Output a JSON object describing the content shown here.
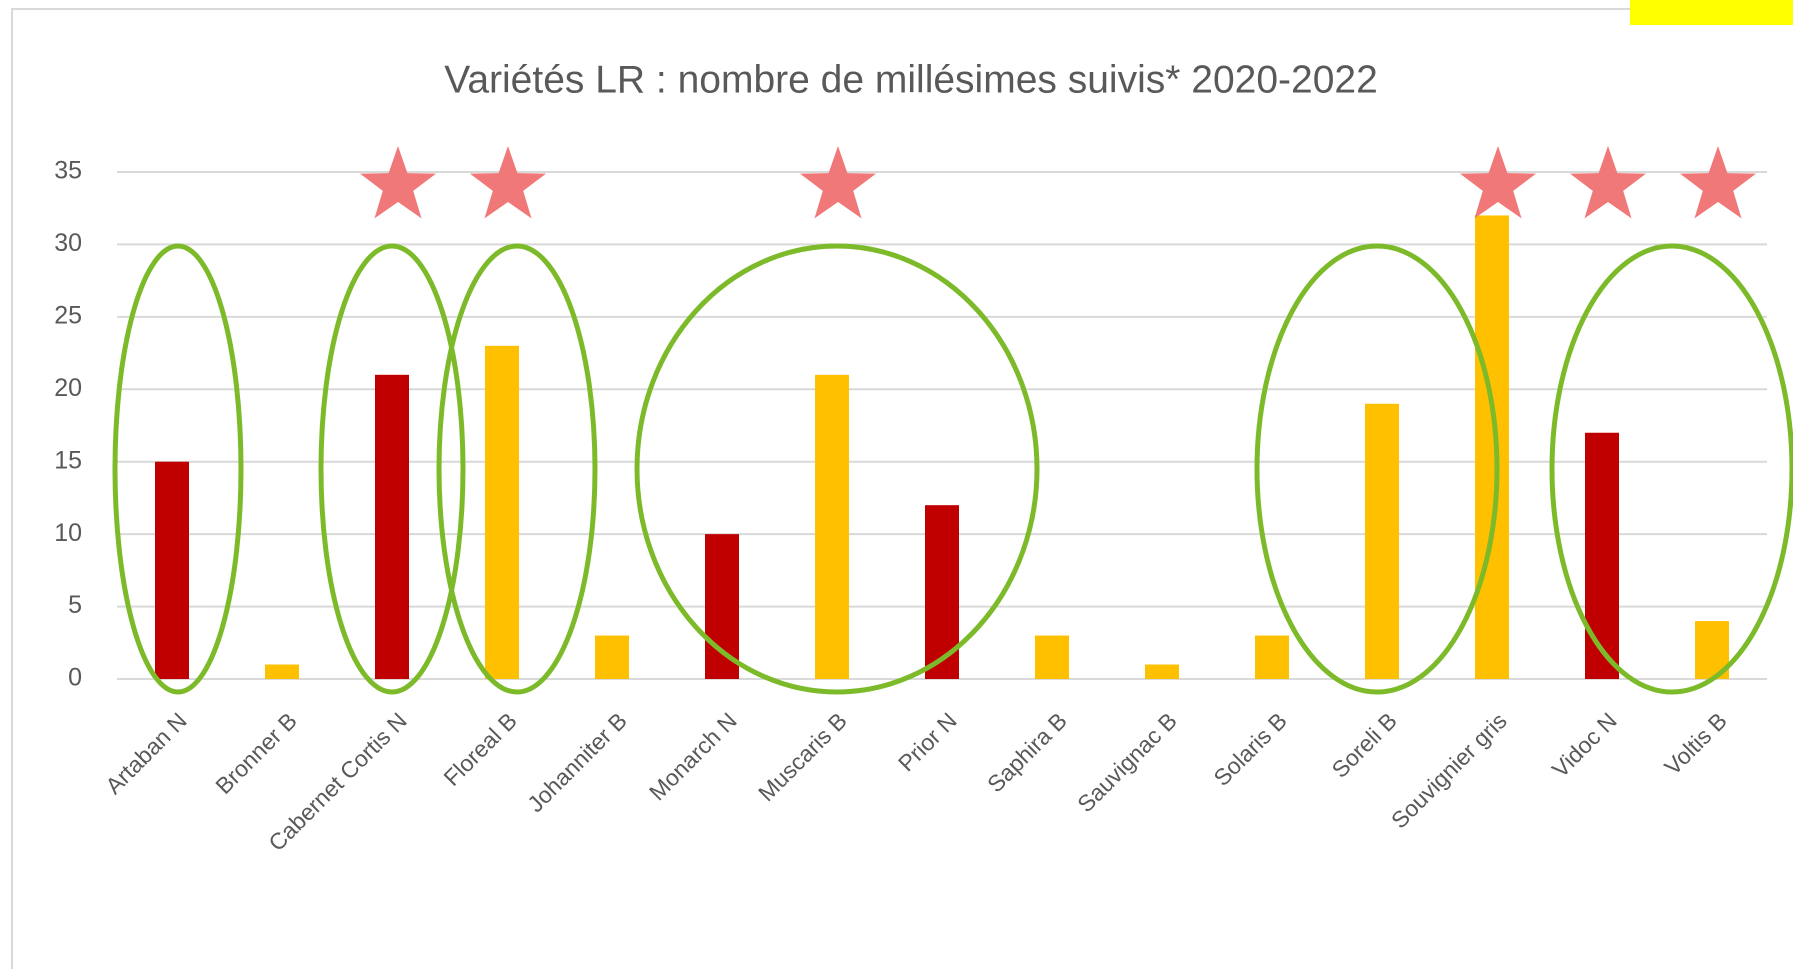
{
  "chart_data": {
    "type": "bar",
    "title": "Variétés LR : nombre de millésimes suivis* 2020-2022",
    "categories": [
      "Artaban N",
      "Bronner B",
      "Cabernet Cortis N",
      "Floreal B",
      "Johanniter B",
      "Monarch N",
      "Muscaris B",
      "Prior N",
      "Saphira B",
      "Sauvignac B",
      "Solaris B",
      "Soreli B",
      "Souvignier gris",
      "Vidoc N",
      "Voltis B"
    ],
    "values": [
      15,
      1,
      21,
      23,
      3,
      10,
      21,
      12,
      3,
      1,
      3,
      19,
      32,
      17,
      4
    ],
    "colors": [
      "#c00000",
      "#ffc000",
      "#c00000",
      "#ffc000",
      "#ffc000",
      "#c00000",
      "#ffc000",
      "#c00000",
      "#ffc000",
      "#ffc000",
      "#ffc000",
      "#ffc000",
      "#ffc000",
      "#c00000",
      "#ffc000"
    ],
    "ylim": [
      0,
      35
    ],
    "yticks": [
      0,
      5,
      10,
      15,
      20,
      25,
      30,
      35
    ],
    "grid": true
  }
}
